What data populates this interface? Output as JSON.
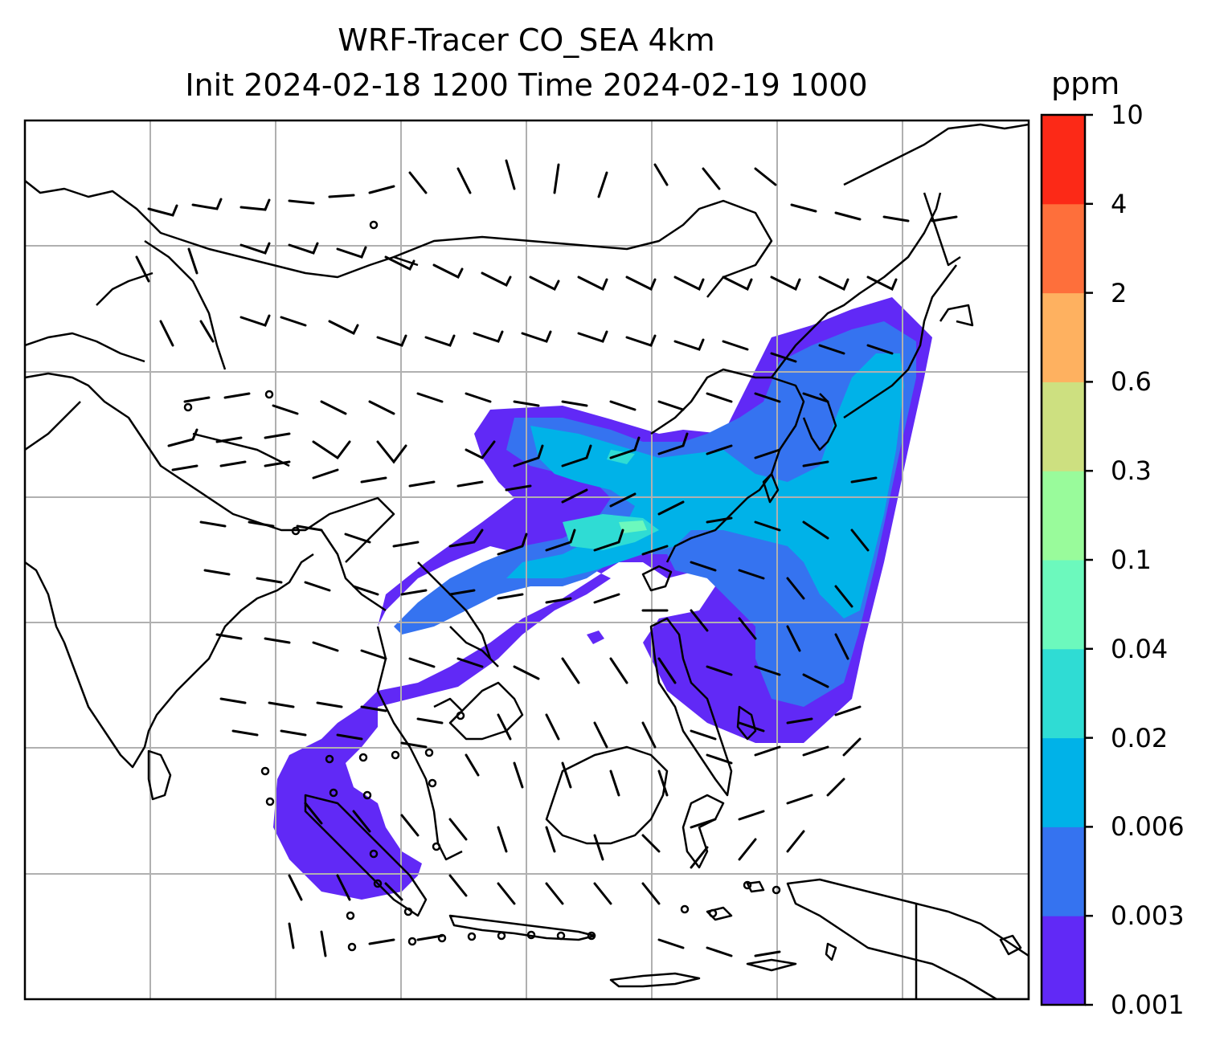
{
  "title": {
    "line1": "WRF-Tracer CO_SEA 4km",
    "line2": "Init 2024-02-18 1200 Time 2024-02-19 1000"
  },
  "colorbar": {
    "unit": "ppm",
    "levels": [
      "0.001",
      "0.003",
      "0.006",
      "0.02",
      "0.04",
      "0.1",
      "0.3",
      "0.6",
      "2",
      "4",
      "10"
    ],
    "colors": [
      "#6129f6",
      "#3573f0",
      "#00b2e8",
      "#2fdcd4",
      "#6cf9bd",
      "#99fb9b",
      "#cde080",
      "#feb160",
      "#fe6f3b",
      "#fc2917"
    ]
  },
  "map": {
    "gridlines": "on",
    "features": [
      "coastlines",
      "country-borders",
      "wind-barbs",
      "tracer-plume"
    ],
    "plume_levels_present": [
      "0.001",
      "0.003",
      "0.006",
      "0.02",
      "0.04"
    ]
  }
}
